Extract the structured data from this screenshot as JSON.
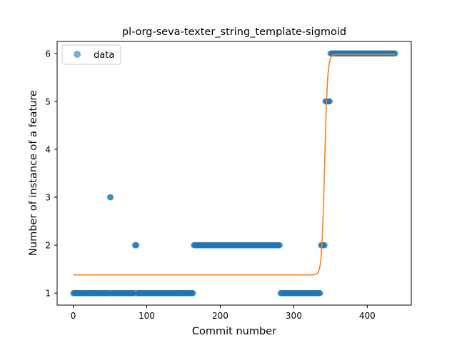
{
  "chart_data": {
    "type": "scatter",
    "title": "pl-org-seva-texter_string_template-sigmoid",
    "xlabel": "Commit number",
    "ylabel": "Number of instance of a feature",
    "xlim": [
      -21.9,
      459.9
    ],
    "ylim": [
      0.75,
      6.25
    ],
    "xticks": [
      0,
      100,
      200,
      300,
      400
    ],
    "yticks": [
      1,
      2,
      3,
      4,
      5,
      6
    ],
    "grid": false,
    "legend": {
      "position": "top-left",
      "entries": [
        {
          "label": "data",
          "marker": "circle"
        }
      ]
    },
    "colors": {
      "data": "#1f77b4",
      "fit": "#ff7f0e",
      "axes": "#000000",
      "background": "#ffffff"
    },
    "series": [
      {
        "name": "data",
        "kind": "markers",
        "segments": [
          {
            "y": 1,
            "x_from": 0,
            "x_to": 49
          },
          {
            "y": 3,
            "x_from": 50,
            "x_to": 51
          },
          {
            "y": 1,
            "x_from": 52,
            "x_to": 83
          },
          {
            "y": 2,
            "x_from": 84,
            "x_to": 86
          },
          {
            "y": 1,
            "x_from": 87,
            "x_to": 163
          },
          {
            "y": 2,
            "x_from": 164,
            "x_to": 281
          },
          {
            "y": 1,
            "x_from": 282,
            "x_to": 336
          },
          {
            "y": 2,
            "x_from": 337,
            "x_to": 342
          },
          {
            "y": 5,
            "x_from": 343,
            "x_to": 349
          },
          {
            "y": 6,
            "x_from": 350,
            "x_to": 438
          }
        ]
      },
      {
        "name": "",
        "kind": "line",
        "model": "sigmoid",
        "params": {
          "low": 1.38,
          "high": 5.98,
          "midpoint": 342,
          "steepness": 0.5
        },
        "x_range": [
          0,
          438
        ]
      }
    ]
  }
}
